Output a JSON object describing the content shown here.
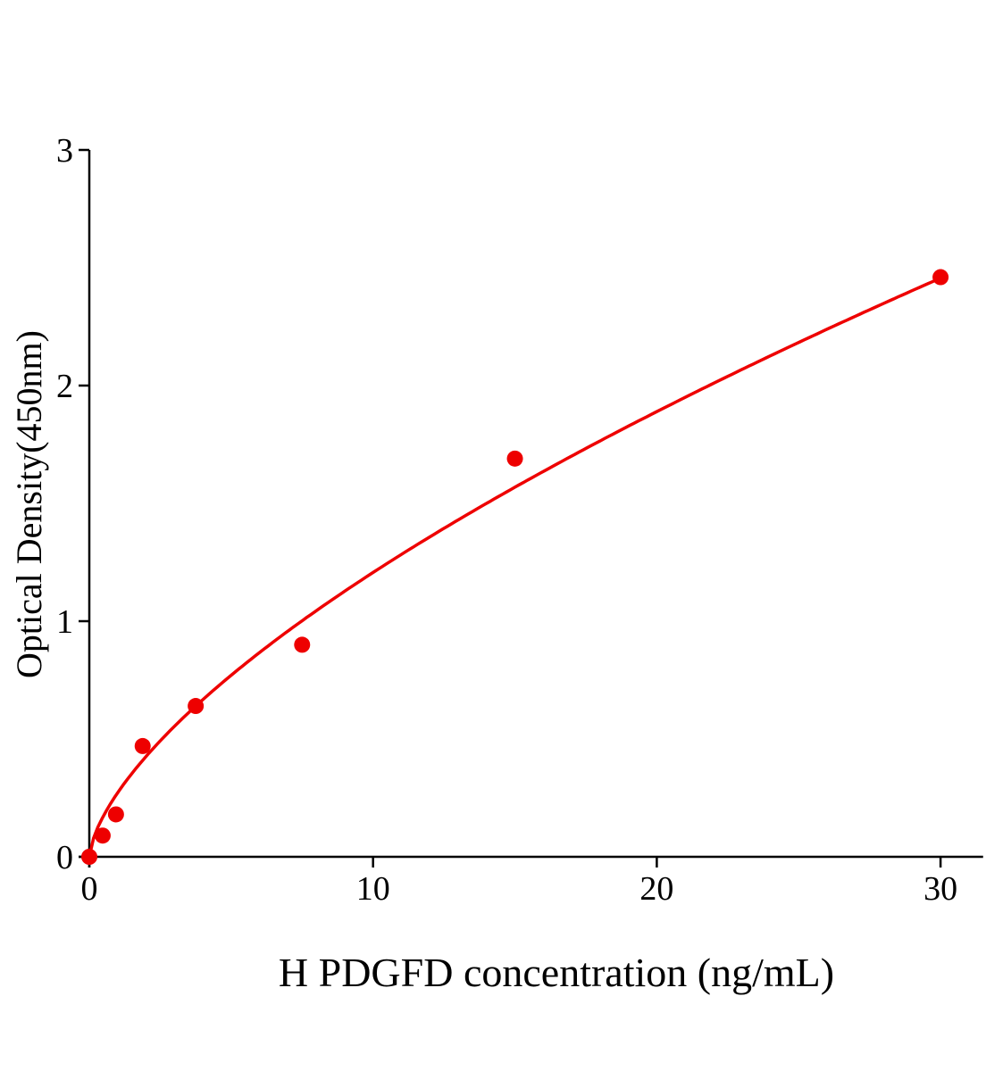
{
  "chart_data": {
    "type": "scatter",
    "title": "",
    "xlabel": "H PDGFD concentration (ng/mL)",
    "ylabel": "Optical Density(450nm)",
    "xlim": [
      0,
      31.5
    ],
    "ylim": [
      0,
      3
    ],
    "xticks": [
      0,
      10,
      20,
      30
    ],
    "yticks": [
      0,
      1,
      2,
      3
    ],
    "grid": false,
    "legend": "none",
    "color": "#ee0000",
    "fit_curve": true,
    "points": [
      {
        "x": 0,
        "y": 0.0
      },
      {
        "x": 0.47,
        "y": 0.09
      },
      {
        "x": 0.94,
        "y": 0.18
      },
      {
        "x": 1.88,
        "y": 0.47
      },
      {
        "x": 3.75,
        "y": 0.64
      },
      {
        "x": 7.5,
        "y": 0.9
      },
      {
        "x": 15,
        "y": 1.69
      },
      {
        "x": 30,
        "y": 2.46
      }
    ]
  }
}
